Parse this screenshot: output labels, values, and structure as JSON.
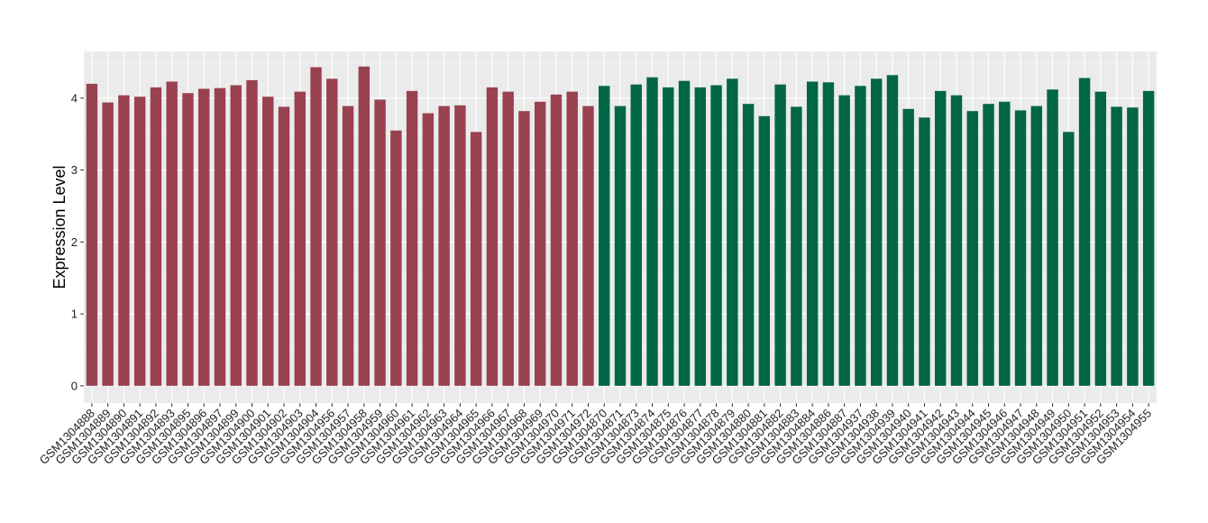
{
  "chart_data": {
    "type": "bar",
    "title": "",
    "xlabel": "",
    "ylabel": "Expression Level",
    "ylim": [
      -0.24,
      4.65
    ],
    "yticks": [
      0,
      1,
      2,
      3,
      4
    ],
    "grid": true,
    "legend": "none",
    "colors": {
      "group1": "#9A4150",
      "group2": "#006745",
      "panel": "#EBEBEB",
      "grid": "#FFFFFF"
    },
    "categories": [
      "GSM1304888",
      "GSM1304889",
      "GSM1304890",
      "GSM1304891",
      "GSM1304892",
      "GSM1304893",
      "GSM1304895",
      "GSM1304896",
      "GSM1304897",
      "GSM1304899",
      "GSM1304900",
      "GSM1304901",
      "GSM1304902",
      "GSM1304903",
      "GSM1304904",
      "GSM1304956",
      "GSM1304957",
      "GSM1304958",
      "GSM1304959",
      "GSM1304960",
      "GSM1304961",
      "GSM1304962",
      "GSM1304963",
      "GSM1304964",
      "GSM1304965",
      "GSM1304966",
      "GSM1304967",
      "GSM1304968",
      "GSM1304969",
      "GSM1304970",
      "GSM1304971",
      "GSM1304972",
      "GSM1304870",
      "GSM1304871",
      "GSM1304873",
      "GSM1304874",
      "GSM1304875",
      "GSM1304876",
      "GSM1304877",
      "GSM1304878",
      "GSM1304879",
      "GSM1304880",
      "GSM1304881",
      "GSM1304882",
      "GSM1304883",
      "GSM1304884",
      "GSM1304886",
      "GSM1304887",
      "GSM1304937",
      "GSM1304938",
      "GSM1304939",
      "GSM1304940",
      "GSM1304941",
      "GSM1304942",
      "GSM1304943",
      "GSM1304944",
      "GSM1304945",
      "GSM1304946",
      "GSM1304947",
      "GSM1304948",
      "GSM1304949",
      "GSM1304950",
      "GSM1304951",
      "GSM1304952",
      "GSM1304953",
      "GSM1304954",
      "GSM1304955"
    ],
    "values": [
      4.2,
      3.94,
      4.04,
      4.02,
      4.15,
      4.23,
      4.07,
      4.13,
      4.14,
      4.18,
      4.25,
      4.02,
      3.88,
      4.09,
      4.43,
      4.27,
      3.89,
      4.44,
      3.98,
      3.55,
      4.1,
      3.79,
      3.89,
      3.9,
      3.53,
      4.15,
      4.09,
      3.82,
      3.95,
      4.05,
      4.09,
      3.89,
      4.17,
      3.89,
      4.19,
      4.29,
      4.15,
      4.24,
      4.15,
      4.18,
      4.27,
      3.92,
      3.75,
      4.19,
      3.88,
      4.23,
      4.22,
      4.04,
      4.17,
      4.27,
      4.32,
      3.85,
      3.73,
      4.1,
      4.04,
      3.82,
      3.92,
      3.95,
      3.83,
      3.89,
      4.12,
      3.53,
      4.28,
      4.09,
      3.88,
      3.87,
      4.1
    ],
    "groups": [
      1,
      1,
      1,
      1,
      1,
      1,
      1,
      1,
      1,
      1,
      1,
      1,
      1,
      1,
      1,
      1,
      1,
      1,
      1,
      1,
      1,
      1,
      1,
      1,
      1,
      1,
      1,
      1,
      1,
      1,
      1,
      1,
      2,
      2,
      2,
      2,
      2,
      2,
      2,
      2,
      2,
      2,
      2,
      2,
      2,
      2,
      2,
      2,
      2,
      2,
      2,
      2,
      2,
      2,
      2,
      2,
      2,
      2,
      2,
      2,
      2,
      2,
      2,
      2,
      2,
      2,
      2
    ]
  }
}
